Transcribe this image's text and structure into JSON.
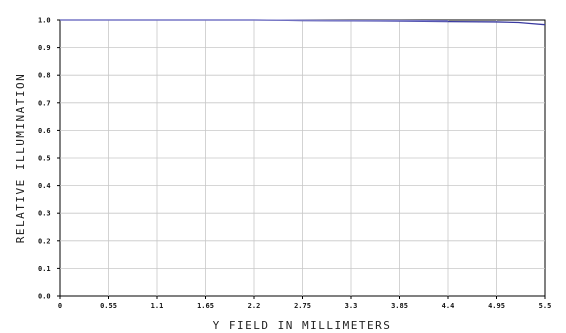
{
  "chart_data": {
    "type": "line",
    "title": "",
    "xlabel": "Y FIELD IN MILLIMETERS",
    "ylabel": "RELATIVE ILLUMINATION",
    "xlim": [
      0,
      5.5
    ],
    "ylim": [
      0,
      1.0
    ],
    "grid": true,
    "x_ticks": [
      0,
      0.55,
      1.1,
      1.65,
      2.2,
      2.75,
      3.3,
      3.85,
      4.4,
      4.95,
      5.5
    ],
    "x_tick_labels": [
      "0",
      "0.55",
      "1.1",
      "1.65",
      "2.2",
      "2.75",
      "3.3",
      "3.85",
      "4.4",
      "4.95",
      "5.5"
    ],
    "y_ticks": [
      0,
      0.1,
      0.2,
      0.3,
      0.4,
      0.5,
      0.6,
      0.7,
      0.8,
      0.9,
      1.0
    ],
    "y_tick_labels": [
      "0.0",
      "0.1",
      "0.2",
      "0.3",
      "0.4",
      "0.5",
      "0.6",
      "0.7",
      "0.8",
      "0.9",
      "1.0"
    ],
    "series": [
      {
        "color": "#3a3aa0",
        "x": [
          0,
          0.55,
          1.1,
          1.65,
          2.2,
          2.5,
          2.75,
          3.3,
          3.85,
          4.4,
          4.95,
          5.2,
          5.35,
          5.5
        ],
        "values": [
          1.0,
          1.0,
          1.0,
          1.0,
          1.0,
          0.999,
          0.998,
          0.997,
          0.996,
          0.994,
          0.993,
          0.991,
          0.987,
          0.983
        ]
      },
      {
        "color": "#7a7ac8",
        "x": [
          0,
          0.55,
          1.1,
          1.65,
          2.2,
          2.75,
          3.3,
          3.85,
          4.4
        ],
        "values": [
          1.0,
          1.0,
          1.0,
          1.0,
          1.0,
          0.999,
          0.998,
          0.998,
          0.997
        ]
      }
    ]
  }
}
